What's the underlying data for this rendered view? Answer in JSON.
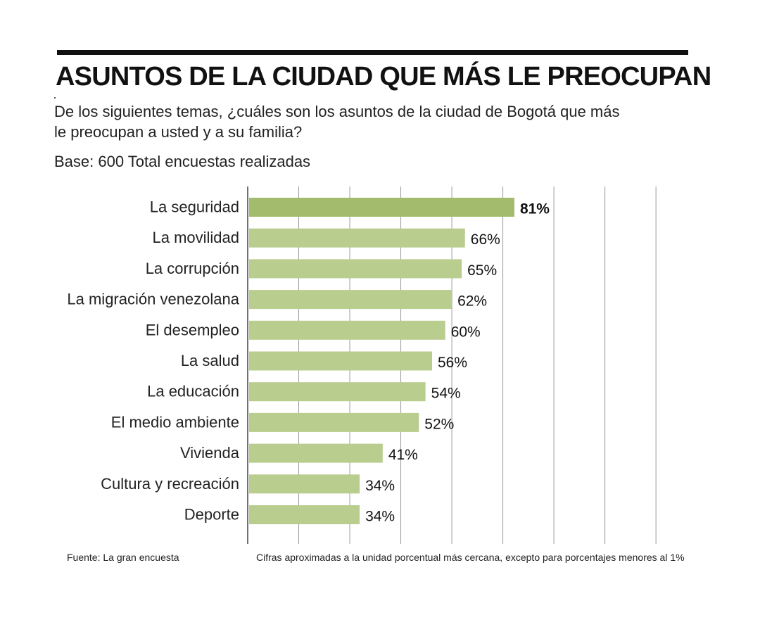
{
  "header": {
    "title": "ASUNTOS DE LA CIUDAD QUE MÁS LE PREOCUPAN",
    "subtitle": "De los siguientes temas, ¿cuáles son los asuntos de la ciudad de Bogotá que más le preocupan a usted y a su familia?",
    "base": "Base: 600 Total encuestas realizadas"
  },
  "footer": {
    "source": "Fuente: La gran encuesta",
    "note": "Cifras aproximadas a la unidad porcentual más cercana, excepto para porcentajes menores al 1%"
  },
  "colors": {
    "highlight_bar": "#a3bb6c",
    "bar": "#b9cd8f",
    "grid": "#9a9a9a",
    "axis": "#444444"
  },
  "chart_data": {
    "type": "bar",
    "orientation": "horizontal",
    "title": "ASUNTOS DE LA CIUDAD QUE MÁS LE PREOCUPAN",
    "categories": [
      "La seguridad",
      "La movilidad",
      "La corrupción",
      "La migración venezolana",
      "El desempleo",
      "La salud",
      "La educación",
      "El medio ambiente",
      "Vivienda",
      "Cultura y recreación",
      "Deporte"
    ],
    "values": [
      81,
      66,
      65,
      62,
      60,
      56,
      54,
      52,
      41,
      34,
      34
    ],
    "value_labels": [
      "81%",
      "66%",
      "65%",
      "62%",
      "60%",
      "56%",
      "54%",
      "52%",
      "41%",
      "34%",
      "34%"
    ],
    "highlight_index": 0,
    "unit": "%",
    "xlim": [
      0,
      140
    ],
    "grid_step": 15.5,
    "grid": true,
    "xlabel": "",
    "ylabel": ""
  }
}
